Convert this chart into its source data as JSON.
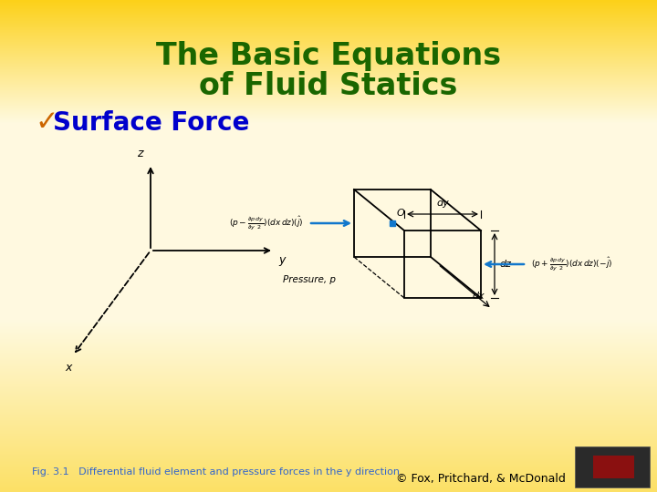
{
  "title_line1": "The Basic Equations",
  "title_line2": "of Fluid Statics",
  "title_color": "#1a6600",
  "title_fontsize": 24,
  "bullet_checkmark": "✓",
  "bullet_text": "Surface Force",
  "bullet_color_check": "#cc6600",
  "bullet_color_text": "#0000cc",
  "bullet_fontsize": 20,
  "fig_caption": "Fig. 3.1   Differential fluid element and pressure forces in the y direction.",
  "fig_caption_color": "#3366cc",
  "fig_caption_fontsize": 8,
  "copyright_text": "© Fox, Pritchard, & McDonald",
  "copyright_color": "#000000",
  "copyright_fontsize": 9,
  "arrow_color": "#1177cc",
  "diagram_lw": 1.3
}
